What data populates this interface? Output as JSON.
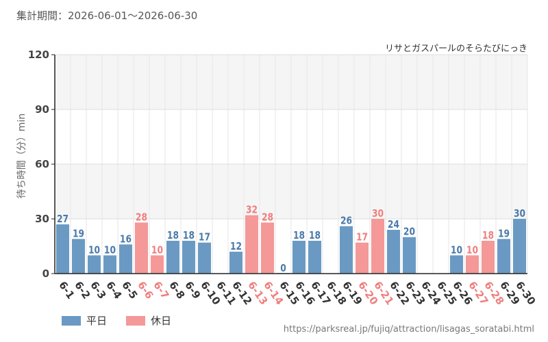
{
  "header": {
    "period_label": "集計期間：2026-06-01～2026-06-30"
  },
  "footer": {
    "url": "https://parksreal.jp/fujiq/attraction/lisagas_soratabi.html"
  },
  "colors": {
    "weekday": "#6a9ac3",
    "holiday": "#f49898",
    "weekday_text": "#4a7aaa",
    "holiday_text": "#f07e7e"
  },
  "chart_data": {
    "type": "bar",
    "title": "リサとガスパールのそらたびにっき",
    "ylabel": "待ち時間（分）min",
    "xlabel": "",
    "ylim": [
      0,
      120
    ],
    "yticks": [
      0,
      30,
      60,
      90,
      120
    ],
    "grid": true,
    "legend_position": "bottom-left",
    "legend": [
      {
        "name": "平日",
        "kind": "weekday"
      },
      {
        "name": "休日",
        "kind": "holiday"
      }
    ],
    "categories": [
      "6-1",
      "6-2",
      "6-3",
      "6-4",
      "6-5",
      "6-6",
      "6-7",
      "6-8",
      "6-9",
      "6-10",
      "6-11",
      "6-12",
      "6-13",
      "6-14",
      "6-15",
      "6-16",
      "6-17",
      "6-18",
      "6-19",
      "6-20",
      "6-21",
      "6-22",
      "6-23",
      "6-24",
      "6-25",
      "6-26",
      "6-27",
      "6-28",
      "6-29",
      "6-30"
    ],
    "values": [
      27,
      19,
      10,
      10,
      16,
      28,
      10,
      18,
      18,
      17,
      null,
      12,
      32,
      28,
      0,
      18,
      18,
      null,
      26,
      17,
      30,
      24,
      20,
      null,
      null,
      10,
      10,
      18,
      19,
      30
    ],
    "kinds": [
      "weekday",
      "weekday",
      "weekday",
      "weekday",
      "weekday",
      "holiday",
      "holiday",
      "weekday",
      "weekday",
      "weekday",
      "weekday",
      "weekday",
      "holiday",
      "holiday",
      "weekday",
      "weekday",
      "weekday",
      "weekday",
      "weekday",
      "holiday",
      "holiday",
      "weekday",
      "weekday",
      "weekday",
      "weekday",
      "weekday",
      "holiday",
      "holiday",
      "weekday",
      "weekday"
    ]
  }
}
